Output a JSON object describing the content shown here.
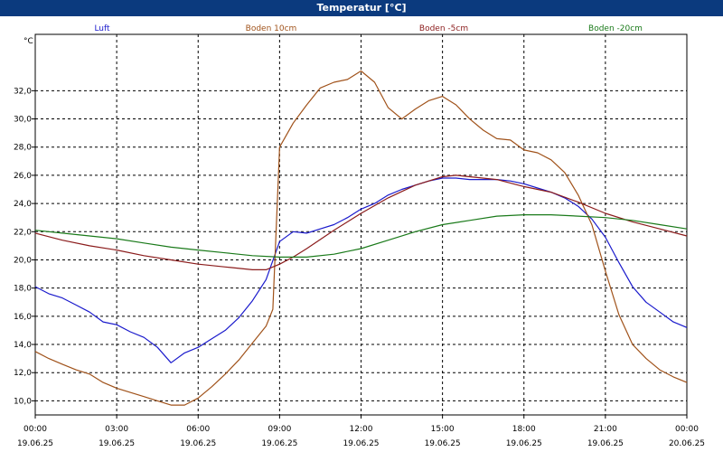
{
  "window": {
    "title": "Temperatur [°C]"
  },
  "chart_data": {
    "type": "line",
    "title": "Temperatur [°C]",
    "ylabel": "°C",
    "ylim": [
      9,
      36
    ],
    "xlim": [
      0,
      24
    ],
    "grid": true,
    "legend_placement": "top",
    "y_ticks": [
      "10,0",
      "12,0",
      "14,0",
      "16,0",
      "18,0",
      "20,0",
      "22,0",
      "24,0",
      "26,0",
      "28,0",
      "30,0",
      "32,0"
    ],
    "y_tick_values": [
      10,
      12,
      14,
      16,
      18,
      20,
      22,
      24,
      26,
      28,
      30,
      32
    ],
    "x_ticks": [
      {
        "time": "00:00",
        "date": "19.06.25"
      },
      {
        "time": "03:00",
        "date": "19.06.25"
      },
      {
        "time": "06:00",
        "date": "19.06.25"
      },
      {
        "time": "09:00",
        "date": "19.06.25"
      },
      {
        "time": "12:00",
        "date": "19.06.25"
      },
      {
        "time": "15:00",
        "date": "19.06.25"
      },
      {
        "time": "18:00",
        "date": "19.06.25"
      },
      {
        "time": "21:00",
        "date": "19.06.25"
      },
      {
        "time": "00:00",
        "date": "20.06.25"
      }
    ],
    "x_tick_values": [
      0,
      3,
      6,
      9,
      12,
      15,
      18,
      21,
      24
    ],
    "series": [
      {
        "name": "Luft",
        "color": "#1a1acc",
        "x": [
          0,
          0.5,
          1,
          1.5,
          2,
          2.5,
          3,
          3.5,
          4,
          4.5,
          5,
          5.5,
          6,
          6.5,
          7,
          7.5,
          8,
          8.5,
          9,
          9.5,
          10,
          10.5,
          11,
          11.5,
          12,
          12.5,
          13,
          13.5,
          14,
          14.5,
          15,
          15.5,
          16,
          16.5,
          17,
          17.5,
          18,
          18.5,
          19,
          19.5,
          20,
          20.5,
          21,
          21.5,
          22,
          22.5,
          23,
          23.5,
          24
        ],
        "y": [
          18.1,
          17.6,
          17.3,
          16.8,
          16.3,
          15.6,
          15.4,
          14.9,
          14.5,
          13.8,
          12.7,
          13.4,
          13.8,
          14.4,
          15.0,
          15.9,
          17.1,
          18.6,
          21.3,
          22.0,
          21.9,
          22.2,
          22.5,
          23.0,
          23.6,
          24.0,
          24.6,
          25.0,
          25.3,
          25.6,
          25.8,
          25.8,
          25.7,
          25.7,
          25.7,
          25.6,
          25.4,
          25.1,
          24.8,
          24.4,
          23.8,
          22.9,
          21.6,
          19.8,
          18.1,
          17.0,
          16.3,
          15.6,
          15.2
        ]
      },
      {
        "name": "Boden 10cm",
        "color": "#a0521a",
        "x": [
          0,
          0.5,
          1,
          1.5,
          2,
          2.5,
          3,
          3.5,
          4,
          4.5,
          5,
          5.5,
          6,
          6.5,
          7,
          7.5,
          8,
          8.5,
          8.75,
          9,
          9.5,
          10,
          10.5,
          11,
          11.5,
          12,
          12.5,
          13,
          13.5,
          14,
          14.5,
          15,
          15.5,
          16,
          16.5,
          17,
          17.5,
          18,
          18.5,
          19,
          19.5,
          20,
          20.5,
          21,
          21.5,
          22,
          22.5,
          23,
          23.5,
          24
        ],
        "y": [
          13.5,
          13.0,
          12.6,
          12.2,
          11.9,
          11.3,
          10.9,
          10.6,
          10.3,
          10.0,
          9.7,
          9.7,
          10.2,
          11.0,
          11.9,
          12.9,
          14.1,
          15.3,
          16.5,
          28.0,
          29.7,
          31.0,
          32.2,
          32.6,
          32.8,
          33.4,
          32.6,
          30.8,
          30.0,
          30.7,
          31.3,
          31.6,
          31.0,
          30.0,
          29.2,
          28.6,
          28.5,
          27.8,
          27.6,
          27.1,
          26.2,
          24.6,
          22.5,
          19.2,
          16.1,
          14.0,
          13.0,
          12.2,
          11.7,
          11.3
        ]
      },
      {
        "name": "Boden -5cm",
        "color": "#8b1c1c",
        "x": [
          0,
          1,
          2,
          3,
          4,
          5,
          6,
          7,
          8,
          8.5,
          9,
          9.5,
          10,
          11,
          12,
          13,
          14,
          15,
          15.5,
          16,
          17,
          18,
          19,
          20,
          21,
          22,
          23,
          24
        ],
        "y": [
          21.9,
          21.4,
          21.0,
          20.7,
          20.3,
          20.0,
          19.7,
          19.5,
          19.3,
          19.3,
          19.7,
          20.2,
          20.8,
          22.1,
          23.3,
          24.4,
          25.3,
          25.9,
          26.0,
          25.9,
          25.7,
          25.2,
          24.8,
          24.1,
          23.3,
          22.7,
          22.2,
          21.7
        ]
      },
      {
        "name": "Boden -20cm",
        "color": "#1a7a1a",
        "x": [
          0,
          1,
          2,
          3,
          4,
          5,
          6,
          7,
          8,
          9,
          10,
          11,
          12,
          13,
          14,
          15,
          16,
          17,
          18,
          19,
          20,
          21,
          22,
          23,
          24
        ],
        "y": [
          22.1,
          21.9,
          21.7,
          21.5,
          21.2,
          20.9,
          20.7,
          20.5,
          20.3,
          20.2,
          20.2,
          20.4,
          20.8,
          21.4,
          22.0,
          22.5,
          22.8,
          23.1,
          23.2,
          23.2,
          23.1,
          23.0,
          22.8,
          22.5,
          22.2
        ]
      }
    ]
  }
}
